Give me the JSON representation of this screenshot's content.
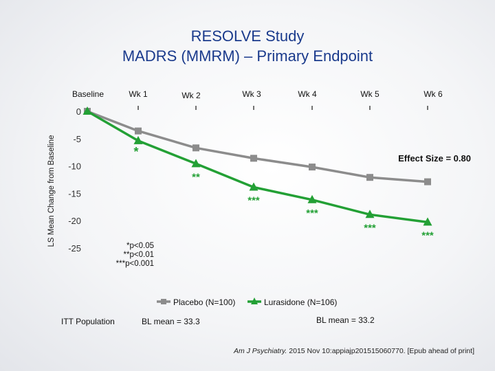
{
  "title_line1": "RESOLVE Study",
  "title_line2": "MADRS (MMRM) – Primary Endpoint",
  "chart_data": {
    "type": "line",
    "ylabel": "LS Mean Change from Baseline",
    "categories": [
      "Baseline",
      "Wk 1",
      "Wk 2",
      "Wk 3",
      "Wk 4",
      "Wk 5",
      "Wk 6"
    ],
    "y_ticks": [
      0,
      -5,
      -10,
      -15,
      -20,
      -25
    ],
    "ylim": [
      -27,
      0.5
    ],
    "series": [
      {
        "name": "Placebo (N=100)",
        "color": "#8c8c8c",
        "marker": "square",
        "values": [
          0,
          -3.6,
          -6.7,
          -8.6,
          -10.2,
          -12.1,
          -12.9
        ]
      },
      {
        "name": "Lurasidone (N=106)",
        "color": "#23a035",
        "marker": "triangle",
        "values": [
          0,
          -5.4,
          -9.6,
          -13.9,
          -16.2,
          -18.9,
          -20.3
        ],
        "significance": [
          "",
          "*",
          "**",
          "***",
          "***",
          "***",
          "***"
        ]
      }
    ],
    "annotations": {
      "effect_size": "Effect Size = 0.80",
      "p_values": [
        "*p<0.05",
        "**p<0.01",
        "***p<0.001"
      ]
    },
    "legend_position": "bottom"
  },
  "footer": {
    "population": "ITT Population",
    "bl_placebo": "BL mean = 33.3",
    "bl_lurasidone": "BL mean = 33.2",
    "citation_journal": "Am J Psychiatry.",
    "citation_rest": " 2015 Nov 10:appiajp201515060770. [Epub ahead of print]"
  }
}
